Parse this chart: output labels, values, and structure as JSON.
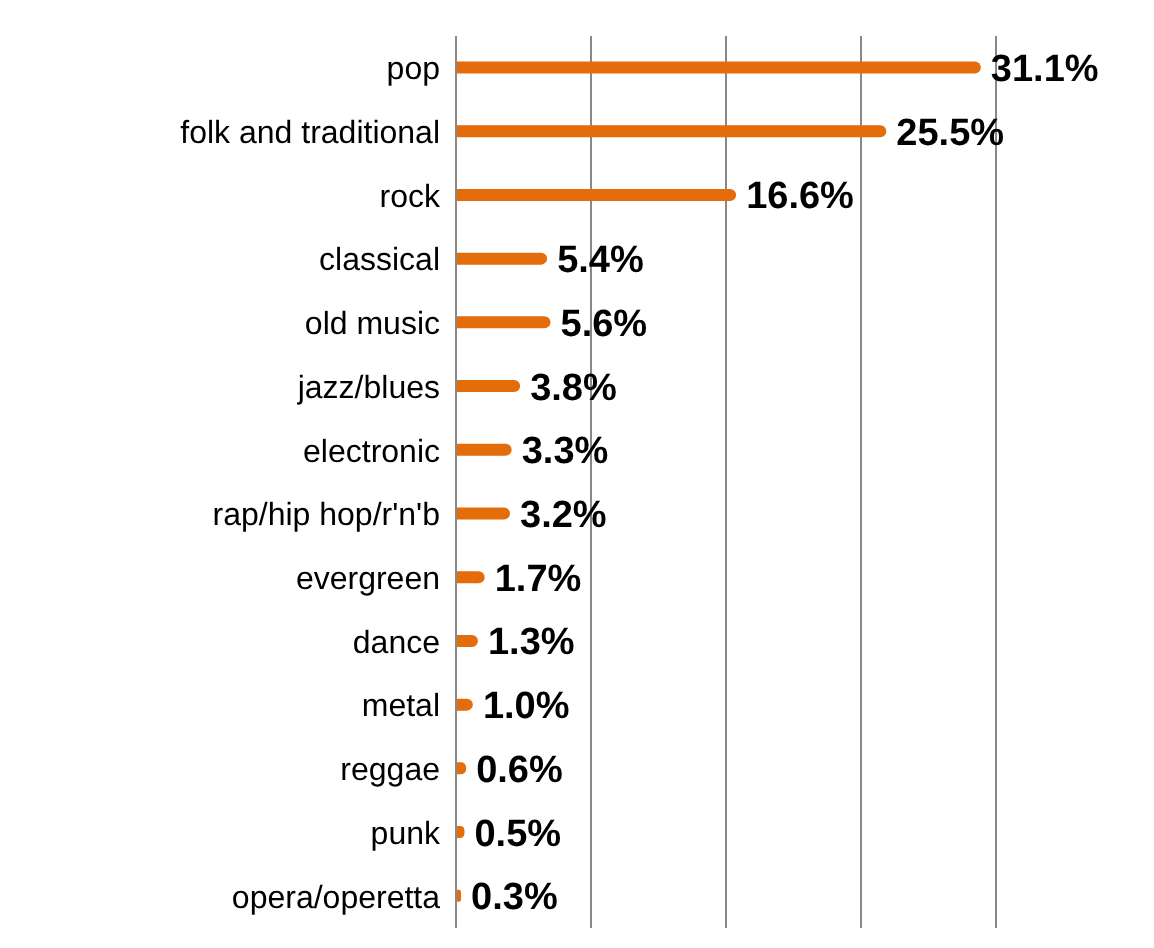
{
  "chart_data": {
    "type": "bar",
    "orientation": "horizontal",
    "categories": [
      "pop",
      "folk and traditional",
      "rock",
      "classical",
      "old music",
      "jazz/blues",
      "electronic",
      "rap/hip hop/r'n'b",
      "evergreen",
      "dance",
      "metal",
      "reggae",
      "punk",
      "opera/operetta"
    ],
    "values": [
      31.1,
      25.5,
      16.6,
      5.4,
      5.6,
      3.8,
      3.3,
      3.2,
      1.7,
      1.3,
      1.0,
      0.6,
      0.5,
      0.3
    ],
    "value_labels": [
      "31.1%",
      "25.5%",
      "16.6%",
      "5.4%",
      "5.6%",
      "3.8%",
      "3.3%",
      "3.2%",
      "1.7%",
      "1.3%",
      "1.0%",
      "0.6%",
      "0.5%",
      "0.3%"
    ],
    "color": "#e46c0a",
    "tick_labels": "y",
    "grid": "x"
  }
}
